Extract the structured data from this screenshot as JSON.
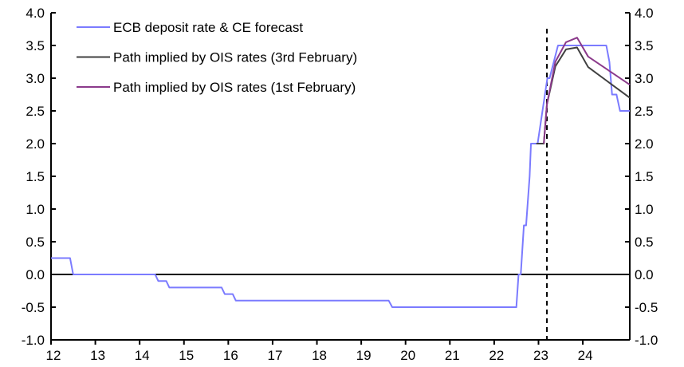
{
  "chart_data": {
    "type": "line",
    "title": "",
    "xlabel": "",
    "ylabel": "",
    "xlim": [
      2012,
      2025.06
    ],
    "ylim": [
      -1.0,
      4.0
    ],
    "x_ticks": [
      2012,
      2013,
      2014,
      2015,
      2016,
      2017,
      2018,
      2019,
      2020,
      2021,
      2022,
      2023,
      2024
    ],
    "x_tick_labels": [
      "12",
      "13",
      "14",
      "15",
      "16",
      "17",
      "18",
      "19",
      "20",
      "21",
      "22",
      "23",
      "24"
    ],
    "y_ticks": [
      -1.0,
      -0.5,
      0.0,
      0.5,
      1.0,
      1.5,
      2.0,
      2.5,
      3.0,
      3.5,
      4.0
    ],
    "y_tick_labels": [
      "-1.0",
      "-0.5",
      "0.0",
      "0.5",
      "1.0",
      "1.5",
      "2.0",
      "2.5",
      "3.0",
      "3.5",
      "4.0"
    ],
    "vline_x": 2023.19,
    "legend_position": "top-left",
    "series": [
      {
        "name": "ECB deposit rate & CE forecast",
        "color": "#7b7bff",
        "x": [
          2012,
          2012.43,
          2012.5,
          2014.35,
          2014.42,
          2014.6,
          2014.67,
          2015.85,
          2015.92,
          2016.1,
          2016.17,
          2019.62,
          2019.7,
          2022.5,
          2022.55,
          2022.6,
          2022.67,
          2022.72,
          2022.8,
          2022.83,
          2022.98,
          2023.2,
          2023.25,
          2023.44,
          2024.53,
          2024.6,
          2024.66,
          2024.76,
          2024.84,
          2025.06
        ],
        "y": [
          0.25,
          0.25,
          0,
          0,
          -0.1,
          -0.1,
          -0.2,
          -0.2,
          -0.3,
          -0.3,
          -0.4,
          -0.4,
          -0.5,
          -0.5,
          0,
          0,
          0.75,
          0.75,
          1.5,
          2.0,
          2.0,
          3.0,
          3.0,
          3.5,
          3.5,
          3.25,
          2.75,
          2.75,
          2.5,
          2.5
        ]
      },
      {
        "name": "Path implied by OIS rates (3rd February)",
        "color": "#404040",
        "x": [
          2022.95,
          2023.12,
          2023.19,
          2023.38,
          2023.62,
          2023.87,
          2024.12,
          2025.06
        ],
        "y": [
          2.0,
          2.0,
          2.6,
          3.18,
          3.44,
          3.47,
          3.17,
          2.7
        ]
      },
      {
        "name": "Path implied by OIS rates (1st February)",
        "color": "#8b3a8b",
        "x": [
          2023.12,
          2023.19,
          2023.38,
          2023.62,
          2023.87,
          2024.12,
          2025.06
        ],
        "y": [
          2.0,
          2.6,
          3.25,
          3.55,
          3.62,
          3.33,
          2.9
        ]
      }
    ]
  }
}
